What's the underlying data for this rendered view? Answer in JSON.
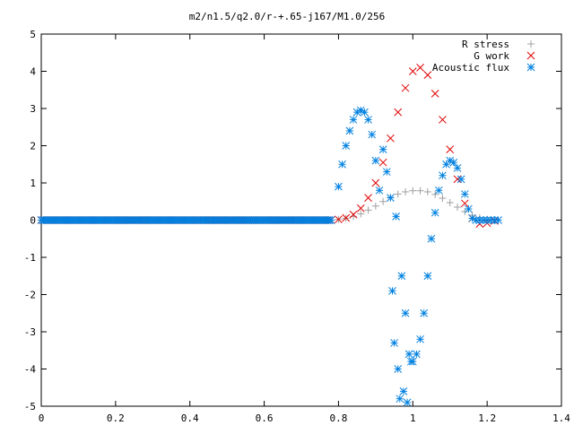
{
  "chart_data": {
    "type": "scatter",
    "title": "m2/n1.5/q2.0/r-+.65-j167/M1.0/256",
    "xlabel": "",
    "ylabel": "",
    "xlim": [
      0,
      1.4
    ],
    "ylim": [
      -5,
      5
    ],
    "xticks": [
      "0",
      "0.2",
      "0.4",
      "0.6",
      "0.8",
      "1",
      "1.2",
      "1.4"
    ],
    "yticks": [
      "5",
      "4",
      "3",
      "2",
      "1",
      "0",
      "-1",
      "-2",
      "-3",
      "-4",
      "-5"
    ],
    "legend_position": "top-right",
    "grid": false,
    "series": [
      {
        "name": "R stress",
        "marker": "plus",
        "color": "#a0a0a0",
        "x": [
          0,
          0.1,
          0.2,
          0.3,
          0.4,
          0.5,
          0.6,
          0.7,
          0.78,
          0.8,
          0.82,
          0.84,
          0.86,
          0.88,
          0.9,
          0.92,
          0.94,
          0.96,
          0.98,
          1.0,
          1.02,
          1.04,
          1.06,
          1.08,
          1.1,
          1.12,
          1.14,
          1.16,
          1.18,
          1.2,
          1.22
        ],
        "y": [
          0,
          0,
          0,
          0,
          0,
          0,
          0,
          0,
          0,
          0.02,
          0.05,
          0.1,
          0.17,
          0.27,
          0.38,
          0.5,
          0.61,
          0.7,
          0.76,
          0.79,
          0.79,
          0.76,
          0.69,
          0.59,
          0.47,
          0.35,
          0.23,
          0.13,
          0.06,
          0.02,
          0.01
        ]
      },
      {
        "name": "G work",
        "marker": "cross",
        "color": "#e00000",
        "x": [
          0,
          0.2,
          0.4,
          0.6,
          0.78,
          0.8,
          0.82,
          0.84,
          0.86,
          0.88,
          0.9,
          0.92,
          0.94,
          0.96,
          0.98,
          1.0,
          1.02,
          1.04,
          1.06,
          1.08,
          1.1,
          1.12,
          1.14,
          1.16,
          1.18,
          1.2,
          1.22
        ],
        "y": [
          0,
          0,
          0,
          0,
          0,
          0.02,
          0.06,
          0.15,
          0.32,
          0.6,
          1.0,
          1.55,
          2.2,
          2.9,
          3.55,
          4.0,
          4.1,
          3.9,
          3.4,
          2.7,
          1.9,
          1.1,
          0.45,
          0.05,
          -0.1,
          -0.08,
          -0.02
        ]
      },
      {
        "name": "Acoustic flux",
        "marker": "star",
        "color": "#0080e0",
        "x": [
          0,
          0.1,
          0.2,
          0.3,
          0.4,
          0.5,
          0.6,
          0.7,
          0.78,
          0.8,
          0.81,
          0.82,
          0.83,
          0.84,
          0.85,
          0.86,
          0.87,
          0.88,
          0.89,
          0.9,
          0.91,
          0.92,
          0.93,
          0.94,
          0.945,
          0.95,
          0.955,
          0.96,
          0.965,
          0.97,
          0.975,
          0.98,
          0.985,
          0.99,
          0.995,
          1.0,
          1.01,
          1.02,
          1.03,
          1.04,
          1.05,
          1.06,
          1.07,
          1.08,
          1.09,
          1.1,
          1.11,
          1.12,
          1.13,
          1.14,
          1.15,
          1.16,
          1.17,
          1.18,
          1.19,
          1.2,
          1.21,
          1.22,
          1.23
        ],
        "y": [
          0,
          0,
          0,
          0,
          0,
          0,
          0,
          0,
          0,
          0.9,
          1.5,
          2.0,
          2.4,
          2.7,
          2.9,
          2.95,
          2.9,
          2.7,
          2.3,
          1.6,
          0.8,
          1.9,
          1.3,
          0.6,
          -1.9,
          -3.3,
          0.1,
          -4.0,
          -4.8,
          -1.5,
          -4.6,
          -2.5,
          -4.9,
          -3.6,
          -3.8,
          -3.8,
          -3.6,
          -3.2,
          -2.5,
          -1.5,
          -0.5,
          0.2,
          0.8,
          1.2,
          1.5,
          1.6,
          1.55,
          1.4,
          1.1,
          0.7,
          0.3,
          0.05,
          0.0,
          0.0,
          0.0,
          0.0,
          0.0,
          0.0,
          0.0
        ]
      }
    ]
  }
}
